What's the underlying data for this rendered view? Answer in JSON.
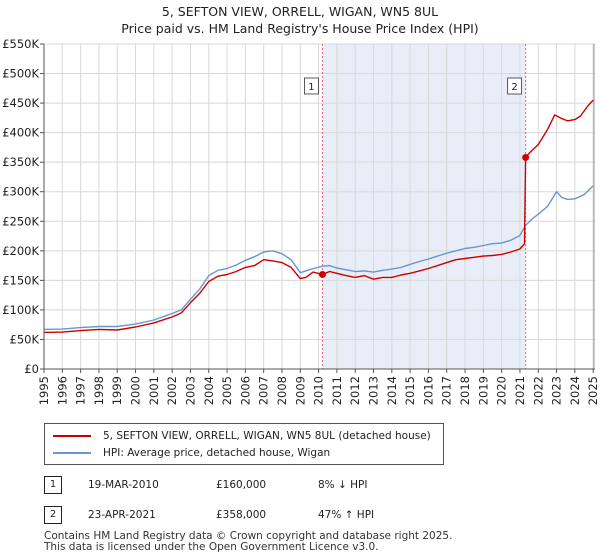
{
  "title_line1": "5, SEFTON VIEW, ORRELL, WIGAN, WN5 8UL",
  "title_line2": "Price paid vs. HM Land Registry's House Price Index (HPI)",
  "colors": {
    "property": "#cc0000",
    "hpi": "#6a96cc",
    "shade": "#e8edf8",
    "grid": "#d8d8d8",
    "marker_line": "#e06666"
  },
  "chart_data": {
    "type": "line",
    "xlim": [
      1995,
      2025.1
    ],
    "ylim": [
      0,
      550000
    ],
    "y_ticks": [
      0,
      50000,
      100000,
      150000,
      200000,
      250000,
      300000,
      350000,
      400000,
      450000,
      500000,
      550000
    ],
    "y_tick_labels": [
      "£0",
      "£50K",
      "£100K",
      "£150K",
      "£200K",
      "£250K",
      "£300K",
      "£350K",
      "£400K",
      "£450K",
      "£500K",
      "£550K"
    ],
    "x_ticks": [
      1995,
      1996,
      1997,
      1998,
      1999,
      2000,
      2001,
      2002,
      2003,
      2004,
      2005,
      2006,
      2007,
      2008,
      2009,
      2010,
      2011,
      2012,
      2013,
      2014,
      2015,
      2016,
      2017,
      2018,
      2019,
      2020,
      2021,
      2022,
      2023,
      2024,
      2025
    ],
    "x_tick_labels": [
      "1995",
      "1996",
      "1997",
      "1998",
      "1999",
      "2000",
      "2001",
      "2002",
      "2003",
      "2004",
      "2005",
      "2006",
      "2007",
      "2008",
      "2009",
      "2010",
      "2011",
      "2012",
      "2013",
      "2014",
      "2015",
      "2016",
      "2017",
      "2018",
      "2019",
      "2020",
      "2021",
      "2022",
      "2023",
      "2024",
      "2025"
    ],
    "shaded_range": [
      2010.21,
      2021.31
    ],
    "series": [
      {
        "name": "5, SEFTON VIEW, ORRELL, WIGAN, WN5 8UL (detached house)",
        "x": [
          1995.0,
          1996.0,
          1997.0,
          1998.0,
          1999.0,
          2000.0,
          2001.0,
          2002.0,
          2002.5,
          2003.0,
          2003.5,
          2004.0,
          2004.5,
          2005.0,
          2005.5,
          2006.0,
          2006.5,
          2007.0,
          2007.5,
          2008.0,
          2008.5,
          2009.0,
          2009.3,
          2009.7,
          2010.21,
          2010.6,
          2011.0,
          2011.5,
          2012.0,
          2012.5,
          2013.0,
          2013.5,
          2014.0,
          2014.5,
          2015.0,
          2015.5,
          2016.0,
          2016.5,
          2017.0,
          2017.5,
          2018.0,
          2018.5,
          2019.0,
          2019.5,
          2020.0,
          2020.5,
          2021.0,
          2021.25,
          2021.31,
          2021.5,
          2022.0,
          2022.5,
          2022.9,
          2023.2,
          2023.6,
          2024.0,
          2024.3,
          2024.7,
          2025.0
        ],
        "values": [
          62000,
          62500,
          65000,
          67000,
          66000,
          71000,
          78000,
          88000,
          95000,
          112000,
          128000,
          148000,
          157000,
          160000,
          165000,
          172000,
          175000,
          185000,
          183000,
          180000,
          172000,
          153000,
          155000,
          164000,
          160000,
          165000,
          162000,
          158000,
          155000,
          158000,
          152000,
          155000,
          155000,
          159000,
          162000,
          166000,
          170000,
          175000,
          180000,
          185000,
          187000,
          189000,
          191000,
          192000,
          194000,
          198000,
          203000,
          212000,
          358000,
          365000,
          380000,
          405000,
          430000,
          425000,
          420000,
          422000,
          428000,
          445000,
          455000
        ]
      },
      {
        "name": "HPI: Average price, detached house, Wigan",
        "x": [
          1995.0,
          1996.0,
          1997.0,
          1998.0,
          1999.0,
          2000.0,
          2001.0,
          2002.0,
          2002.5,
          2003.0,
          2003.5,
          2004.0,
          2004.5,
          2005.0,
          2005.5,
          2006.0,
          2006.5,
          2007.0,
          2007.5,
          2008.0,
          2008.5,
          2009.0,
          2009.5,
          2010.21,
          2010.6,
          2011.0,
          2011.5,
          2012.0,
          2012.5,
          2013.0,
          2013.5,
          2014.0,
          2014.5,
          2015.0,
          2015.5,
          2016.0,
          2016.5,
          2017.0,
          2017.5,
          2018.0,
          2018.5,
          2019.0,
          2019.5,
          2020.0,
          2020.5,
          2021.0,
          2021.31,
          2021.7,
          2022.0,
          2022.5,
          2023.0,
          2023.3,
          2023.6,
          2024.0,
          2024.5,
          2025.0
        ],
        "values": [
          67000,
          67500,
          70000,
          72000,
          72000,
          76000,
          83000,
          94000,
          100000,
          118000,
          135000,
          158000,
          167000,
          170000,
          176000,
          184000,
          190000,
          198000,
          200000,
          195000,
          185000,
          163000,
          168000,
          174000,
          175000,
          171000,
          168000,
          165000,
          166000,
          164000,
          167000,
          169000,
          172000,
          177000,
          182000,
          186000,
          191000,
          196000,
          200000,
          204000,
          206000,
          209000,
          212000,
          213000,
          218000,
          226000,
          243000,
          255000,
          262000,
          275000,
          300000,
          290000,
          287000,
          288000,
          295000,
          310000
        ]
      }
    ],
    "sales": [
      {
        "label": "1",
        "x": 2010.21,
        "price": 160000
      },
      {
        "label": "2",
        "x": 2021.31,
        "price": 358000
      }
    ]
  },
  "legend": {
    "property_label": "5, SEFTON VIEW, ORRELL, WIGAN, WN5 8UL (detached house)",
    "hpi_label": "HPI: Average price, detached house, Wigan"
  },
  "sales_table": [
    {
      "num": "1",
      "date": "19-MAR-2010",
      "price": "£160,000",
      "hpi": "8% ↓ HPI"
    },
    {
      "num": "2",
      "date": "23-APR-2021",
      "price": "£358,000",
      "hpi": "47% ↑ HPI"
    }
  ],
  "footer": {
    "line1": "Contains HM Land Registry data © Crown copyright and database right 2025.",
    "line2": "This data is licensed under the Open Government Licence v3.0."
  }
}
